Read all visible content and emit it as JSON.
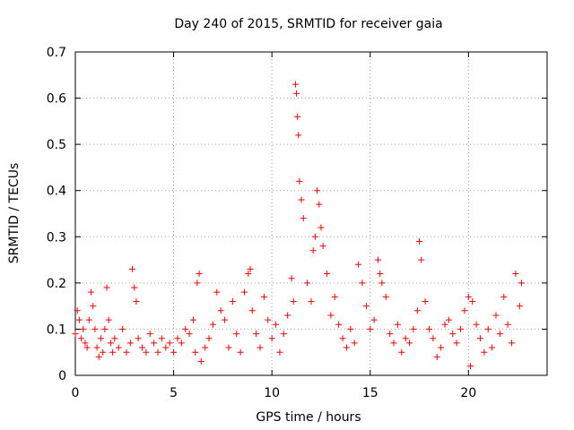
{
  "chart_data": {
    "type": "scatter",
    "title": "Day 240 of 2015, SRMTID for receiver gaia",
    "xlabel": "GPS time / hours",
    "ylabel": "SRMTID / TECUs",
    "xlim": [
      0,
      24
    ],
    "ylim": [
      0,
      0.7
    ],
    "xticks": [
      0,
      5,
      10,
      15,
      20
    ],
    "xtick_labels": [
      "0",
      "5",
      "10",
      "15",
      "20"
    ],
    "yticks": [
      0,
      0.1,
      0.2,
      0.3,
      0.4,
      0.5,
      0.6,
      0.7
    ],
    "ytick_labels": [
      "0",
      "0.1",
      "0.2",
      "0.3",
      "0.4",
      "0.5",
      "0.6",
      "0.7"
    ],
    "grid": true,
    "marker": "+",
    "color": "#ff0000",
    "series": [
      {
        "name": "gaia",
        "x": [
          0.0,
          0.1,
          0.2,
          0.3,
          0.4,
          0.5,
          0.6,
          0.7,
          0.8,
          0.9,
          1.0,
          1.1,
          1.2,
          1.3,
          1.4,
          1.5,
          1.6,
          1.7,
          1.8,
          1.9,
          2.0,
          2.2,
          2.4,
          2.6,
          2.8,
          2.9,
          3.0,
          3.1,
          3.2,
          3.4,
          3.6,
          3.8,
          4.0,
          4.2,
          4.4,
          4.6,
          4.8,
          5.0,
          5.2,
          5.4,
          5.6,
          5.8,
          6.0,
          6.1,
          6.2,
          6.3,
          6.4,
          6.6,
          6.8,
          7.0,
          7.2,
          7.4,
          7.6,
          7.8,
          8.0,
          8.2,
          8.4,
          8.6,
          8.8,
          8.9,
          9.0,
          9.2,
          9.4,
          9.6,
          9.8,
          10.0,
          10.2,
          10.4,
          10.6,
          10.8,
          11.0,
          11.1,
          11.2,
          11.25,
          11.3,
          11.35,
          11.4,
          11.5,
          11.6,
          11.8,
          12.0,
          12.1,
          12.2,
          12.3,
          12.4,
          12.5,
          12.6,
          12.8,
          13.0,
          13.2,
          13.4,
          13.6,
          13.8,
          14.0,
          14.2,
          14.4,
          14.6,
          14.8,
          15.0,
          15.2,
          15.4,
          15.5,
          15.6,
          15.8,
          16.0,
          16.2,
          16.4,
          16.6,
          16.8,
          17.0,
          17.2,
          17.4,
          17.5,
          17.6,
          17.8,
          18.0,
          18.2,
          18.4,
          18.6,
          18.8,
          19.0,
          19.2,
          19.4,
          19.6,
          19.8,
          20.0,
          20.1,
          20.2,
          20.4,
          20.6,
          20.8,
          21.0,
          21.2,
          21.4,
          21.6,
          21.8,
          22.0,
          22.2,
          22.4,
          22.6,
          22.7
        ],
        "y": [
          0.09,
          0.14,
          0.12,
          0.08,
          0.1,
          0.07,
          0.06,
          0.12,
          0.18,
          0.15,
          0.1,
          0.06,
          0.04,
          0.08,
          0.05,
          0.1,
          0.19,
          0.12,
          0.07,
          0.05,
          0.08,
          0.06,
          0.1,
          0.05,
          0.07,
          0.23,
          0.19,
          0.16,
          0.08,
          0.06,
          0.05,
          0.09,
          0.07,
          0.05,
          0.08,
          0.06,
          0.07,
          0.05,
          0.08,
          0.07,
          0.1,
          0.09,
          0.12,
          0.05,
          0.2,
          0.22,
          0.03,
          0.06,
          0.08,
          0.11,
          0.18,
          0.14,
          0.12,
          0.06,
          0.16,
          0.09,
          0.05,
          0.18,
          0.22,
          0.23,
          0.14,
          0.09,
          0.06,
          0.17,
          0.12,
          0.08,
          0.11,
          0.05,
          0.09,
          0.13,
          0.21,
          0.16,
          0.63,
          0.61,
          0.56,
          0.52,
          0.42,
          0.38,
          0.34,
          0.2,
          0.16,
          0.27,
          0.3,
          0.4,
          0.37,
          0.32,
          0.28,
          0.22,
          0.13,
          0.17,
          0.11,
          0.08,
          0.06,
          0.1,
          0.07,
          0.24,
          0.2,
          0.15,
          0.1,
          0.12,
          0.25,
          0.22,
          0.2,
          0.17,
          0.09,
          0.07,
          0.11,
          0.05,
          0.08,
          0.07,
          0.1,
          0.14,
          0.29,
          0.25,
          0.16,
          0.1,
          0.08,
          0.04,
          0.06,
          0.11,
          0.12,
          0.09,
          0.07,
          0.1,
          0.14,
          0.17,
          0.02,
          0.16,
          0.11,
          0.08,
          0.05,
          0.1,
          0.06,
          0.13,
          0.09,
          0.17,
          0.11,
          0.07,
          0.22,
          0.15,
          0.2
        ]
      }
    ]
  }
}
